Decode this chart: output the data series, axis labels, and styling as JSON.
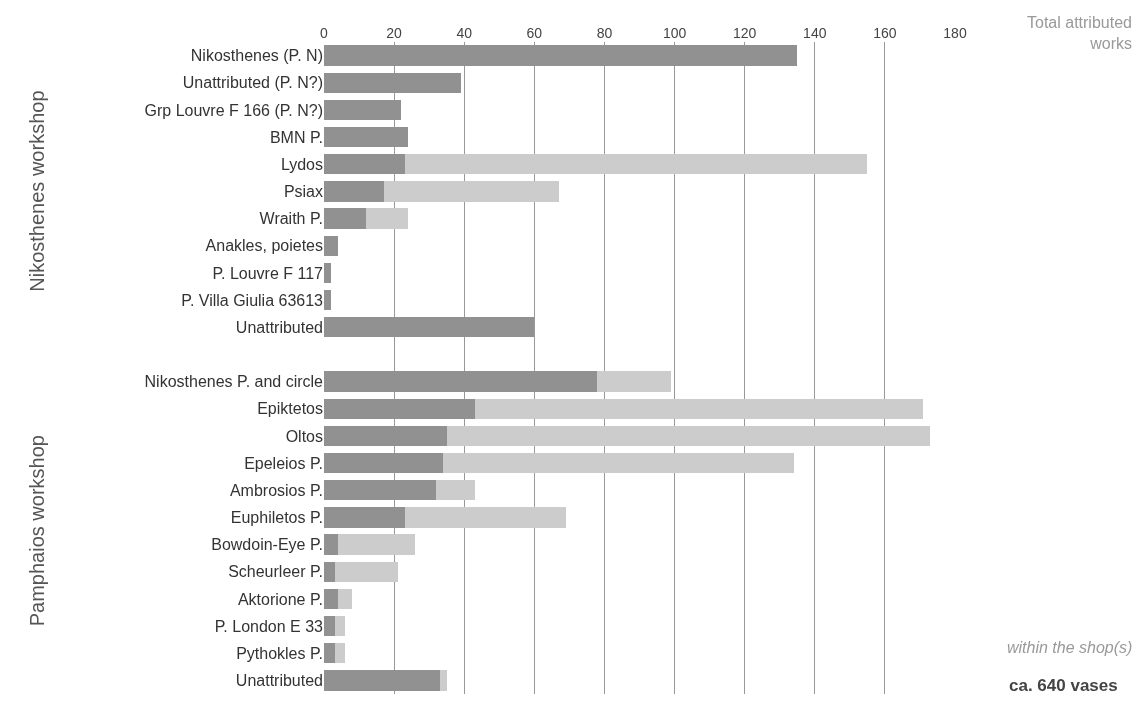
{
  "chart_data": {
    "type": "bar",
    "orientation": "horizontal",
    "categories": [
      "Nikosthenes (P. N)",
      "Unattributed (P. N?)",
      "Grp Louvre F 166 (P. N?)",
      "BMN P.",
      "Lydos",
      "Psiax",
      "Wraith P.",
      "Anakles, poietes",
      "P. Louvre F 117",
      "P. Villa Giulia 63613",
      "Unattributed",
      null,
      "Nikosthenes P. and circle",
      "Epiktetos",
      "Oltos",
      "Epeleios P.",
      "Ambrosios P.",
      "Euphiletos P.",
      "Bowdoin-Eye P.",
      "Scheurleer P.",
      "Aktorione P.",
      "P. London E 33",
      "Pythokles P.",
      "Unattributed"
    ],
    "series": [
      {
        "color": "#919191",
        "values": [
          135,
          39,
          22,
          24,
          23,
          17,
          12,
          4,
          2,
          2,
          60,
          null,
          78,
          43,
          35,
          34,
          32,
          23,
          4,
          3,
          4,
          3,
          3,
          33
        ]
      },
      {
        "color": "#cccccc",
        "values": [
          null,
          null,
          null,
          null,
          132,
          50,
          12,
          null,
          null,
          null,
          null,
          null,
          21,
          128,
          138,
          100,
          11,
          46,
          22,
          18,
          4,
          3,
          3,
          2
        ]
      }
    ],
    "xlim": [
      0,
      180
    ],
    "xticks": [
      0,
      20,
      40,
      60,
      80,
      100,
      120,
      140,
      160,
      180
    ],
    "stacked": true,
    "grid": "x",
    "annotations": [
      "Total attributed works",
      "within the shop(s)",
      "ca. 640 vases",
      "Nikosthenes workshop",
      "Pamphaios workshop"
    ]
  }
}
